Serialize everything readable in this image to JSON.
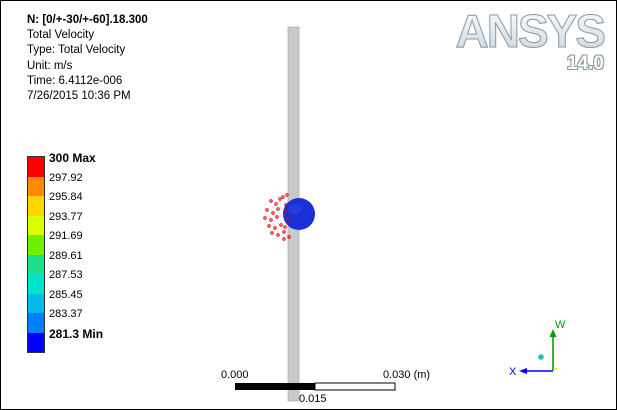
{
  "info": {
    "title": "N: [0/+-30/+-60].18.300",
    "result": "Total Velocity",
    "type": "Type: Total Velocity",
    "unit": "Unit: m/s",
    "time": "Time: 6.4112e-006",
    "date": "7/26/2015 10:36 PM"
  },
  "logo": {
    "brand": "ANSYS",
    "version": "14.0"
  },
  "legend": {
    "items": [
      {
        "label": "300 Max",
        "color": "#ff0000",
        "bold": true
      },
      {
        "label": "297.92",
        "color": "#ff8a00",
        "bold": false
      },
      {
        "label": "295.84",
        "color": "#ffd500",
        "bold": false
      },
      {
        "label": "293.77",
        "color": "#d9ff00",
        "bold": false
      },
      {
        "label": "291.69",
        "color": "#6ef000",
        "bold": false
      },
      {
        "label": "289.61",
        "color": "#1fe08a",
        "bold": false
      },
      {
        "label": "287.53",
        "color": "#00e5ce",
        "bold": false
      },
      {
        "label": "285.45",
        "color": "#00bbe8",
        "bold": false
      },
      {
        "label": "283.37",
        "color": "#0080ff",
        "bold": false
      },
      {
        "label": "281.3 Min",
        "color": "#0000ff",
        "bold": true
      }
    ]
  },
  "scale": {
    "left": "0.000",
    "mid": "0.015",
    "right": "0.030 (m)"
  },
  "triad": {
    "x": "X",
    "w": "W"
  },
  "colors": {
    "projectile": "#1a2fd6",
    "fragments": "#e00000",
    "plate": "#c8c8c8"
  }
}
